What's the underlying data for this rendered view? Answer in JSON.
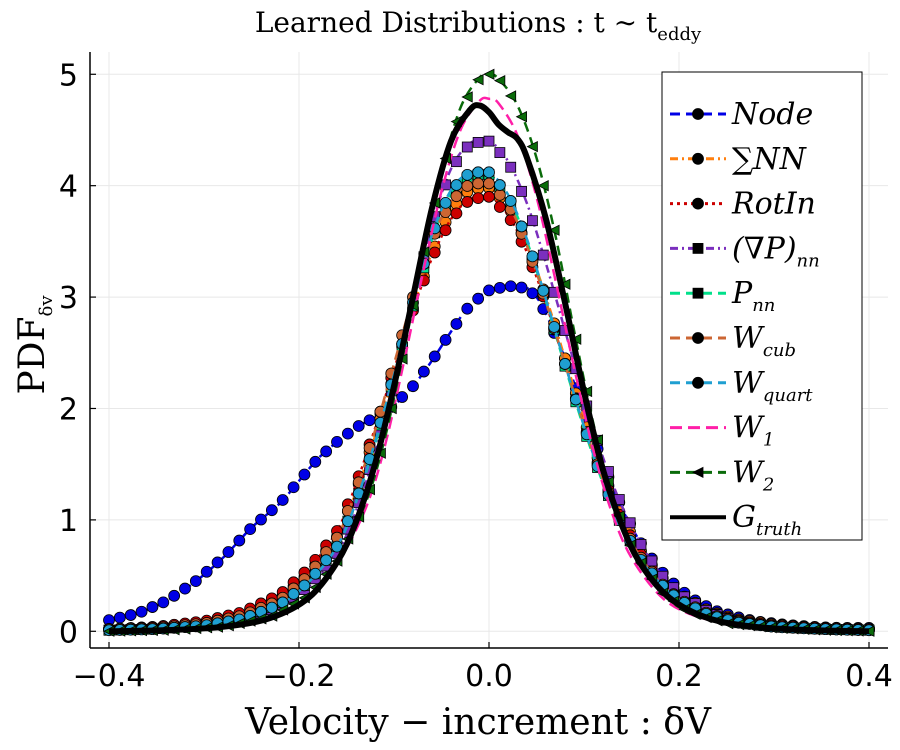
{
  "chart_data": {
    "type": "line",
    "title_main": "Learned Distributions : t ∼ t",
    "title_sub": "eddy",
    "xlabel": "Velocity − increment : δV",
    "ylabel_main": "PDF",
    "ylabel_sub": "δv",
    "xlim": [
      -0.42,
      0.42
    ],
    "ylim": [
      -0.15,
      5.2
    ],
    "x_ticks": [
      -0.4,
      -0.2,
      0.0,
      0.2,
      0.4
    ],
    "x_tick_labels": [
      "−0.4",
      "−0.2",
      "0.0",
      "0.2",
      "0.4"
    ],
    "y_ticks": [
      0,
      1,
      2,
      3,
      4,
      5
    ],
    "y_tick_labels": [
      "0",
      "1",
      "2",
      "3",
      "4",
      "5"
    ],
    "grid": true,
    "legend_position": "top-right",
    "series": [
      {
        "name": "Node",
        "sub": "",
        "color": "#0000e6",
        "marker": "circle",
        "dash": "10,6",
        "x": [
          -0.4,
          -0.37,
          -0.34,
          -0.31,
          -0.28,
          -0.25,
          -0.22,
          -0.2,
          -0.18,
          -0.16,
          -0.14,
          -0.12,
          -0.1,
          -0.08,
          -0.06,
          -0.04,
          -0.02,
          0.0,
          0.02,
          0.04,
          0.05,
          0.06,
          0.08,
          0.1,
          0.12,
          0.14,
          0.16,
          0.18,
          0.2,
          0.22,
          0.24,
          0.26,
          0.28,
          0.31,
          0.34,
          0.37,
          0.4
        ],
        "y": [
          0.1,
          0.16,
          0.27,
          0.44,
          0.66,
          0.93,
          1.15,
          1.35,
          1.55,
          1.7,
          1.83,
          1.92,
          2.03,
          2.2,
          2.43,
          2.69,
          2.93,
          3.06,
          3.1,
          3.08,
          3.0,
          2.85,
          2.45,
          1.98,
          1.5,
          1.1,
          0.79,
          0.55,
          0.38,
          0.26,
          0.18,
          0.13,
          0.09,
          0.06,
          0.04,
          0.03,
          0.03
        ]
      },
      {
        "name": "∑NN",
        "sub": "",
        "color": "#ff7f0e",
        "marker": "circle",
        "dash": "8,4,2,4",
        "x": [
          -0.4,
          -0.35,
          -0.3,
          -0.26,
          -0.22,
          -0.19,
          -0.16,
          -0.14,
          -0.12,
          -0.1,
          -0.08,
          -0.06,
          -0.04,
          -0.02,
          0.0,
          0.02,
          0.04,
          0.06,
          0.08,
          0.1,
          0.12,
          0.14,
          0.16,
          0.18,
          0.2,
          0.23,
          0.26,
          0.3,
          0.35,
          0.4
        ],
        "y": [
          0.02,
          0.04,
          0.08,
          0.16,
          0.3,
          0.52,
          0.85,
          1.25,
          1.75,
          2.3,
          2.9,
          3.4,
          3.78,
          3.97,
          3.98,
          3.82,
          3.48,
          3.0,
          2.45,
          1.9,
          1.42,
          1.02,
          0.72,
          0.5,
          0.34,
          0.19,
          0.11,
          0.06,
          0.03,
          0.02
        ]
      },
      {
        "name": "RotIn",
        "sub": "",
        "color": "#cc0000",
        "marker": "circle",
        "dash": "3,4",
        "x": [
          -0.4,
          -0.35,
          -0.3,
          -0.26,
          -0.22,
          -0.19,
          -0.16,
          -0.14,
          -0.12,
          -0.1,
          -0.08,
          -0.06,
          -0.04,
          -0.02,
          0.0,
          0.02,
          0.04,
          0.06,
          0.08,
          0.1,
          0.12,
          0.14,
          0.16,
          0.18,
          0.2,
          0.23,
          0.26,
          0.3,
          0.35,
          0.4
        ],
        "y": [
          0.02,
          0.04,
          0.09,
          0.17,
          0.33,
          0.56,
          0.9,
          1.32,
          1.82,
          2.35,
          2.88,
          3.35,
          3.7,
          3.88,
          3.9,
          3.74,
          3.4,
          2.94,
          2.4,
          1.86,
          1.38,
          0.99,
          0.69,
          0.47,
          0.32,
          0.18,
          0.1,
          0.05,
          0.03,
          0.02
        ]
      },
      {
        "name": "(∇P)",
        "sub": "nn",
        "color": "#7b2fbe",
        "marker": "square",
        "dash": "8,4,2,4",
        "x": [
          -0.4,
          -0.35,
          -0.3,
          -0.26,
          -0.22,
          -0.19,
          -0.16,
          -0.14,
          -0.12,
          -0.1,
          -0.08,
          -0.06,
          -0.04,
          -0.02,
          0.0,
          0.02,
          0.04,
          0.06,
          0.08,
          0.1,
          0.12,
          0.14,
          0.16,
          0.18,
          0.2,
          0.23,
          0.26,
          0.3,
          0.35,
          0.4
        ],
        "y": [
          0.01,
          0.02,
          0.05,
          0.1,
          0.22,
          0.4,
          0.7,
          1.08,
          1.6,
          2.25,
          2.95,
          3.65,
          4.15,
          4.38,
          4.4,
          4.22,
          3.84,
          3.3,
          2.7,
          2.1,
          1.56,
          1.12,
          0.78,
          0.52,
          0.34,
          0.18,
          0.09,
          0.04,
          0.02,
          0.01
        ]
      },
      {
        "name": "P",
        "sub": "nn",
        "color": "#00e08a",
        "marker": "square",
        "dash": "10,6",
        "x": [
          -0.4,
          -0.35,
          -0.3,
          -0.26,
          -0.22,
          -0.19,
          -0.16,
          -0.14,
          -0.12,
          -0.1,
          -0.08,
          -0.06,
          -0.04,
          -0.02,
          0.0,
          0.02,
          0.04,
          0.06,
          0.08,
          0.1,
          0.12,
          0.14,
          0.16,
          0.18,
          0.2,
          0.23,
          0.26,
          0.3,
          0.35,
          0.4
        ],
        "y": [
          0.01,
          0.02,
          0.05,
          0.11,
          0.24,
          0.44,
          0.76,
          1.16,
          1.68,
          2.28,
          2.92,
          3.52,
          3.92,
          4.1,
          4.1,
          3.9,
          3.5,
          2.96,
          2.38,
          1.82,
          1.33,
          0.94,
          0.64,
          0.43,
          0.28,
          0.15,
          0.08,
          0.04,
          0.02,
          0.01
        ]
      },
      {
        "name": "W",
        "sub": "cub",
        "color": "#cc6633",
        "marker": "circle",
        "dash": "10,6",
        "x": [
          -0.4,
          -0.35,
          -0.3,
          -0.26,
          -0.22,
          -0.19,
          -0.16,
          -0.14,
          -0.12,
          -0.1,
          -0.08,
          -0.06,
          -0.04,
          -0.02,
          0.0,
          0.02,
          0.04,
          0.06,
          0.08,
          0.1,
          0.12,
          0.14,
          0.16,
          0.18,
          0.2,
          0.23,
          0.26,
          0.3,
          0.35,
          0.4
        ],
        "y": [
          0.02,
          0.03,
          0.07,
          0.14,
          0.28,
          0.5,
          0.84,
          1.26,
          1.8,
          2.4,
          3.0,
          3.52,
          3.86,
          4.02,
          4.02,
          3.84,
          3.46,
          2.96,
          2.4,
          1.85,
          1.36,
          0.96,
          0.66,
          0.44,
          0.29,
          0.16,
          0.09,
          0.04,
          0.02,
          0.01
        ]
      },
      {
        "name": "W",
        "sub": "quart",
        "color": "#1f9fd1",
        "marker": "circle",
        "dash": "10,6",
        "x": [
          -0.4,
          -0.35,
          -0.3,
          -0.26,
          -0.22,
          -0.19,
          -0.16,
          -0.14,
          -0.12,
          -0.1,
          -0.08,
          -0.06,
          -0.04,
          -0.02,
          0.0,
          0.02,
          0.04,
          0.06,
          0.08,
          0.1,
          0.12,
          0.14,
          0.16,
          0.18,
          0.2,
          0.23,
          0.26,
          0.3,
          0.35,
          0.4
        ],
        "y": [
          0.01,
          0.02,
          0.05,
          0.11,
          0.24,
          0.44,
          0.76,
          1.16,
          1.7,
          2.3,
          2.95,
          3.56,
          3.96,
          4.12,
          4.12,
          3.92,
          3.52,
          2.98,
          2.4,
          1.84,
          1.34,
          0.94,
          0.64,
          0.43,
          0.28,
          0.15,
          0.08,
          0.04,
          0.02,
          0.01
        ]
      },
      {
        "name": "W",
        "sub": "1",
        "color": "#ff1fa8",
        "marker": "none",
        "dash": "12,6",
        "x": [
          -0.4,
          -0.34,
          -0.28,
          -0.23,
          -0.19,
          -0.16,
          -0.13,
          -0.11,
          -0.09,
          -0.07,
          -0.05,
          -0.03,
          -0.01,
          0.0,
          0.01,
          0.03,
          0.05,
          0.07,
          0.09,
          0.11,
          0.13,
          0.15,
          0.18,
          0.21,
          0.25,
          0.3,
          0.35,
          0.4
        ],
        "y": [
          0.0,
          0.01,
          0.04,
          0.12,
          0.3,
          0.6,
          1.1,
          1.65,
          2.4,
          3.2,
          3.95,
          4.5,
          4.76,
          4.78,
          4.74,
          4.45,
          3.9,
          3.15,
          2.35,
          1.62,
          1.05,
          0.66,
          0.32,
          0.16,
          0.07,
          0.03,
          0.01,
          0.0
        ]
      },
      {
        "name": "W",
        "sub": "2",
        "color": "#0a6b0a",
        "marker": "triangle",
        "dash": "10,6",
        "x": [
          -0.4,
          -0.34,
          -0.28,
          -0.23,
          -0.19,
          -0.16,
          -0.13,
          -0.11,
          -0.09,
          -0.07,
          -0.05,
          -0.03,
          -0.01,
          0.0,
          0.01,
          0.03,
          0.05,
          0.07,
          0.09,
          0.11,
          0.13,
          0.15,
          0.18,
          0.21,
          0.25,
          0.3,
          0.35,
          0.4
        ],
        "y": [
          0.0,
          0.01,
          0.04,
          0.13,
          0.32,
          0.63,
          1.15,
          1.72,
          2.5,
          3.35,
          4.12,
          4.7,
          4.97,
          5.0,
          4.96,
          4.72,
          4.25,
          3.55,
          2.68,
          1.86,
          1.2,
          0.74,
          0.36,
          0.17,
          0.07,
          0.03,
          0.01,
          0.0
        ]
      },
      {
        "name": "G",
        "sub": "truth",
        "color": "#000000",
        "marker": "none",
        "dash": "",
        "x": [
          -0.4,
          -0.34,
          -0.28,
          -0.23,
          -0.19,
          -0.16,
          -0.14,
          -0.12,
          -0.1,
          -0.08,
          -0.06,
          -0.04,
          -0.02,
          -0.01,
          0.0,
          0.01,
          0.02,
          0.03,
          0.04,
          0.06,
          0.08,
          0.1,
          0.12,
          0.14,
          0.16,
          0.19,
          0.23,
          0.28,
          0.34,
          0.4
        ],
        "y": [
          0.0,
          0.01,
          0.04,
          0.12,
          0.3,
          0.62,
          0.98,
          1.5,
          2.2,
          3.0,
          3.8,
          4.4,
          4.68,
          4.72,
          4.66,
          4.55,
          4.48,
          4.42,
          4.25,
          3.7,
          2.95,
          2.15,
          1.45,
          0.95,
          0.6,
          0.3,
          0.12,
          0.04,
          0.01,
          0.0
        ]
      }
    ]
  }
}
